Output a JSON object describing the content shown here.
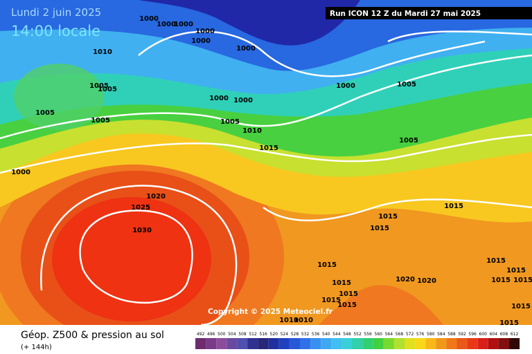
{
  "header": {
    "date": "Lundi 2 juin 2025",
    "time": "14:00 locale",
    "run": "Run ICON 12 Z du Mardi 27 mai 2025"
  },
  "map": {
    "isobar_labels": [
      1000,
      1000,
      1000,
      1000,
      1000,
      1000,
      1010,
      1005,
      1005,
      1005,
      1000,
      1000,
      1000,
      1005,
      1005,
      1005,
      1010,
      1015,
      1005,
      1000,
      1020,
      1025,
      1030,
      1015,
      1015,
      1015,
      1015,
      1015,
      1015,
      1015,
      1015,
      1020,
      1020,
      1015,
      1015,
      1015,
      1015,
      1015,
      1015,
      1010,
      1010
    ],
    "copyright": "Copyright © 2025 Meteociel.fr"
  },
  "legend": {
    "title": "Géop. Z500 & pression au sol",
    "lead_time": "(+ 144h)",
    "scale": [
      492,
      496,
      500,
      504,
      508,
      512,
      516,
      520,
      524,
      528,
      532,
      536,
      540,
      544,
      548,
      552,
      556,
      560,
      564,
      568,
      572,
      576,
      580,
      584,
      588,
      592,
      596,
      600,
      604,
      608,
      612
    ],
    "colors": [
      "#6e2c6e",
      "#7a3a88",
      "#8c4c9c",
      "#6a4aa0",
      "#5050b0",
      "#303090",
      "#282878",
      "#2030a0",
      "#2040c0",
      "#2858d8",
      "#3070e8",
      "#3890f0",
      "#40a8f0",
      "#40c0f0",
      "#38d0d8",
      "#30d0a8",
      "#30d070",
      "#40d040",
      "#78d830",
      "#b0e030",
      "#e0e020",
      "#f8d818",
      "#f8b818",
      "#f09818",
      "#f07818",
      "#e85818",
      "#e83818",
      "#d82018",
      "#b01010",
      "#801010",
      "#300808"
    ]
  }
}
